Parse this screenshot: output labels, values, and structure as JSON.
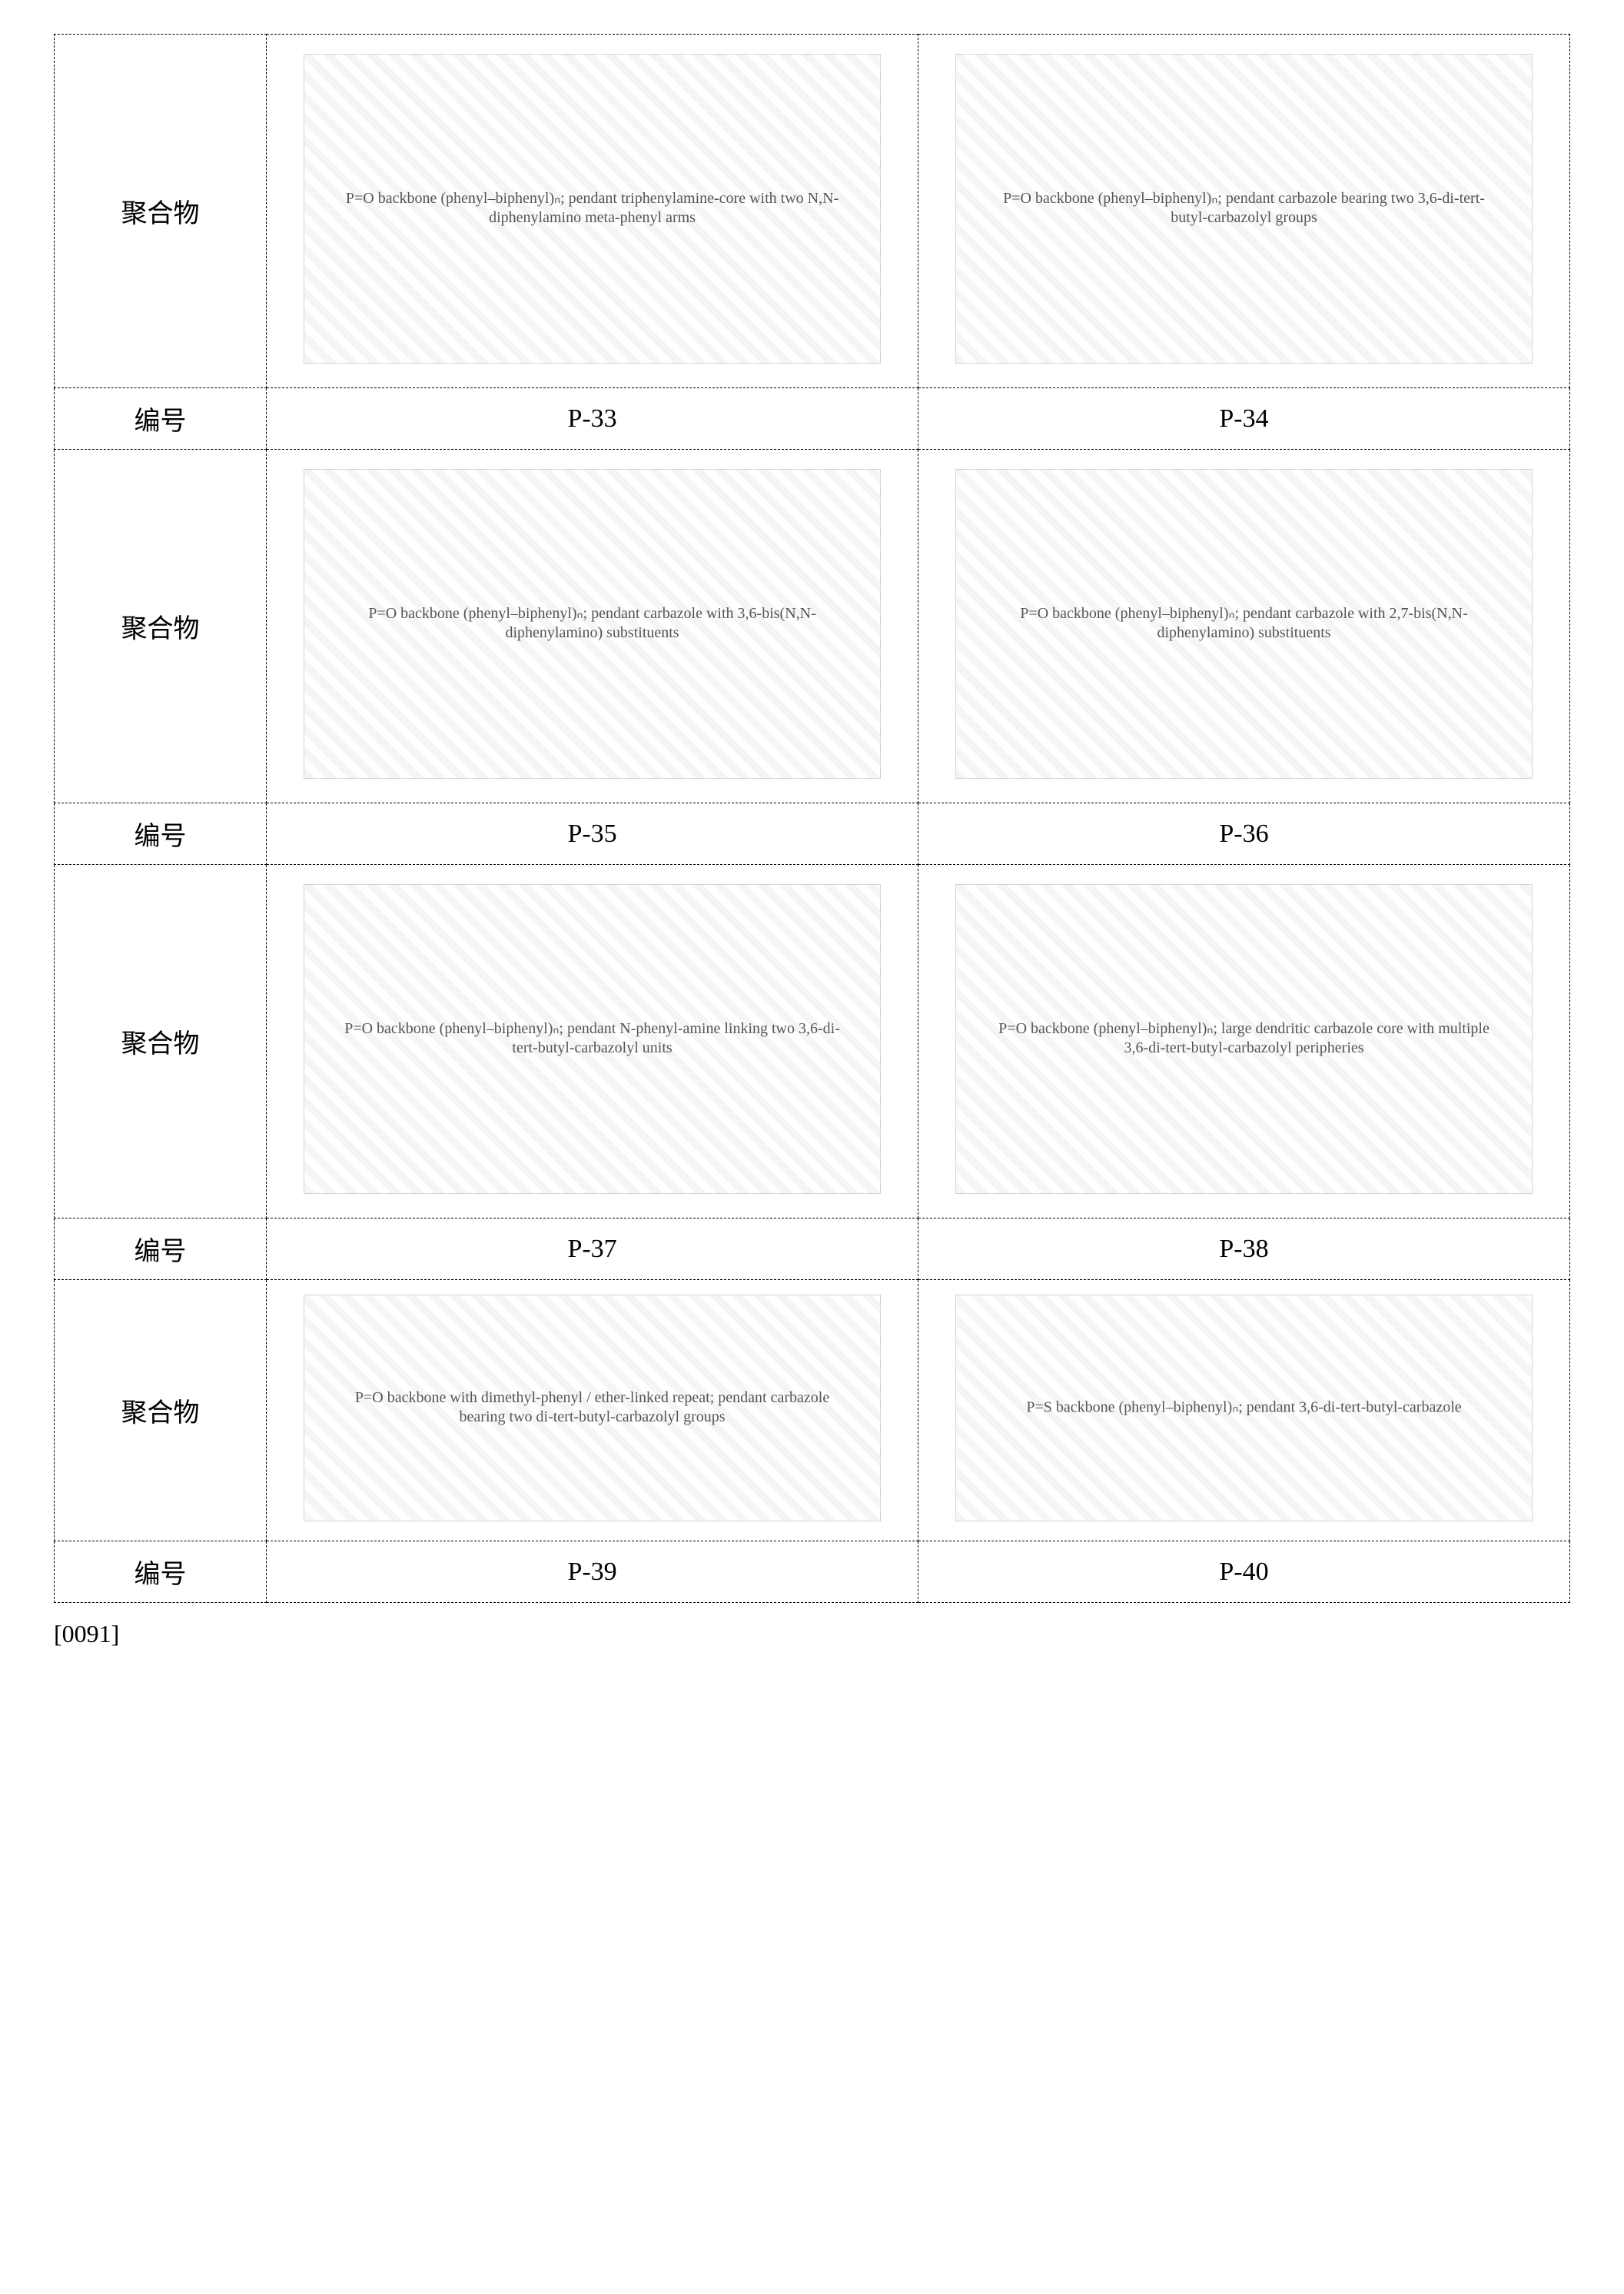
{
  "labels": {
    "polymer": "聚合物",
    "number": "编号"
  },
  "rows": [
    {
      "cells": [
        {
          "id": "P-33",
          "desc": "P=O backbone (phenyl–biphenyl)ₙ; pendant triphenylamine-core with two N,N-diphenylamino meta-phenyl arms"
        },
        {
          "id": "P-34",
          "desc": "P=O backbone (phenyl–biphenyl)ₙ; pendant carbazole bearing two 3,6-di-tert-butyl-carbazolyl groups"
        }
      ]
    },
    {
      "cells": [
        {
          "id": "P-35",
          "desc": "P=O backbone (phenyl–biphenyl)ₙ; pendant carbazole with 3,6-bis(N,N-diphenylamino) substituents"
        },
        {
          "id": "P-36",
          "desc": "P=O backbone (phenyl–biphenyl)ₙ; pendant carbazole with 2,7-bis(N,N-diphenylamino) substituents"
        }
      ]
    },
    {
      "cells": [
        {
          "id": "P-37",
          "desc": "P=O backbone (phenyl–biphenyl)ₙ; pendant N-phenyl-amine linking two 3,6-di-tert-butyl-carbazolyl units"
        },
        {
          "id": "P-38",
          "desc": "P=O backbone (phenyl–biphenyl)ₙ; large dendritic carbazole core with multiple 3,6-di-tert-butyl-carbazolyl peripheries"
        }
      ]
    },
    {
      "short": true,
      "cells": [
        {
          "id": "P-39",
          "desc": "P=O backbone with dimethyl-phenyl / ether-linked repeat; pendant carbazole bearing two di-tert-butyl-carbazolyl groups"
        },
        {
          "id": "P-40",
          "desc": "P=S backbone (phenyl–biphenyl)ₙ; pendant 3,6-di-tert-butyl-carbazole"
        }
      ]
    }
  ],
  "paragraph_number": "[0091]"
}
